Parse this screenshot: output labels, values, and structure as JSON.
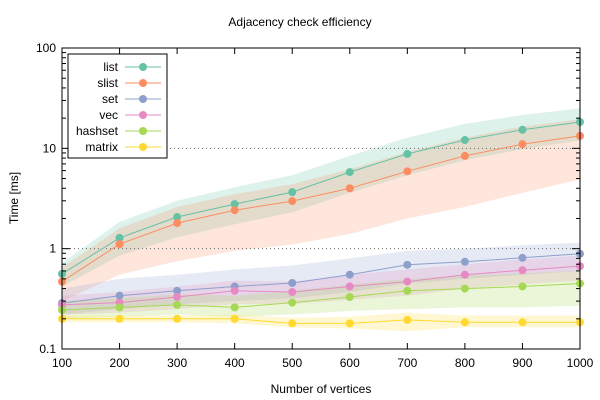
{
  "chart_data": {
    "type": "line",
    "title": "Adjacency check efficiency",
    "xlabel": "Number of vertices",
    "ylabel": "Time [ms]",
    "xscale": "linear",
    "yscale": "log",
    "xlim": [
      100,
      1000
    ],
    "ylim": [
      0.1,
      100
    ],
    "x_ticks": [
      "100",
      "200",
      "300",
      "400",
      "500",
      "600",
      "700",
      "800",
      "900",
      "1000"
    ],
    "y_ticks": [
      "0.1",
      "1",
      "10",
      "100"
    ],
    "grid": "dotted horizontal at 1 and 10",
    "legend_position": "top-left",
    "x": [
      100,
      200,
      300,
      400,
      500,
      600,
      700,
      800,
      900,
      1000
    ],
    "series": [
      {
        "name": "list",
        "color": "#66c2a5",
        "values": [
          0.56,
          1.28,
          2.07,
          2.78,
          3.66,
          5.8,
          8.8,
          12.1,
          15.3,
          18.3
        ],
        "lower": [
          0.42,
          0.85,
          1.3,
          1.75,
          2.3,
          3.6,
          5.4,
          7.6,
          9.8,
          12.0
        ],
        "upper": [
          0.72,
          1.85,
          3.0,
          4.1,
          5.4,
          8.4,
          12.8,
          17.5,
          21.5,
          25.0
        ]
      },
      {
        "name": "slist",
        "color": "#fc8d62",
        "values": [
          0.47,
          1.11,
          1.8,
          2.42,
          2.98,
          4.0,
          5.9,
          8.4,
          11.0,
          13.3
        ],
        "lower": [
          0.3,
          0.55,
          0.75,
          0.95,
          1.1,
          1.4,
          2.0,
          2.6,
          3.6,
          4.9
        ],
        "upper": [
          0.65,
          1.6,
          2.6,
          3.5,
          4.4,
          6.2,
          9.2,
          12.8,
          16.5,
          19.5
        ]
      },
      {
        "name": "set",
        "color": "#8da0cb",
        "values": [
          0.287,
          0.34,
          0.38,
          0.42,
          0.455,
          0.55,
          0.69,
          0.74,
          0.81,
          0.89
        ],
        "lower": [
          0.22,
          0.25,
          0.28,
          0.3,
          0.32,
          0.37,
          0.45,
          0.5,
          0.55,
          0.6
        ],
        "upper": [
          0.4,
          0.5,
          0.55,
          0.62,
          0.68,
          0.8,
          0.95,
          1.0,
          1.08,
          1.15
        ]
      },
      {
        "name": "vec",
        "color": "#e78ac3",
        "values": [
          0.275,
          0.29,
          0.33,
          0.38,
          0.37,
          0.42,
          0.47,
          0.55,
          0.61,
          0.67
        ],
        "lower": [
          0.22,
          0.23,
          0.25,
          0.28,
          0.28,
          0.31,
          0.34,
          0.4,
          0.44,
          0.48
        ],
        "upper": [
          0.34,
          0.37,
          0.42,
          0.48,
          0.47,
          0.55,
          0.62,
          0.7,
          0.78,
          0.85
        ]
      },
      {
        "name": "hashset",
        "color": "#a6d854",
        "values": [
          0.245,
          0.26,
          0.275,
          0.26,
          0.29,
          0.33,
          0.38,
          0.4,
          0.42,
          0.45
        ],
        "lower": [
          0.2,
          0.21,
          0.22,
          0.21,
          0.22,
          0.24,
          0.25,
          0.26,
          0.26,
          0.27
        ],
        "upper": [
          0.3,
          0.32,
          0.35,
          0.34,
          0.38,
          0.44,
          0.5,
          0.54,
          0.57,
          0.6
        ]
      },
      {
        "name": "matrix",
        "color": "#ffd92f",
        "values": [
          0.2,
          0.2,
          0.2,
          0.2,
          0.18,
          0.18,
          0.195,
          0.185,
          0.185,
          0.185
        ],
        "lower": [
          0.185,
          0.185,
          0.185,
          0.18,
          0.165,
          0.16,
          0.15,
          0.165,
          0.165,
          0.165
        ],
        "upper": [
          0.215,
          0.215,
          0.215,
          0.22,
          0.205,
          0.21,
          0.23,
          0.215,
          0.215,
          0.215
        ]
      }
    ]
  }
}
